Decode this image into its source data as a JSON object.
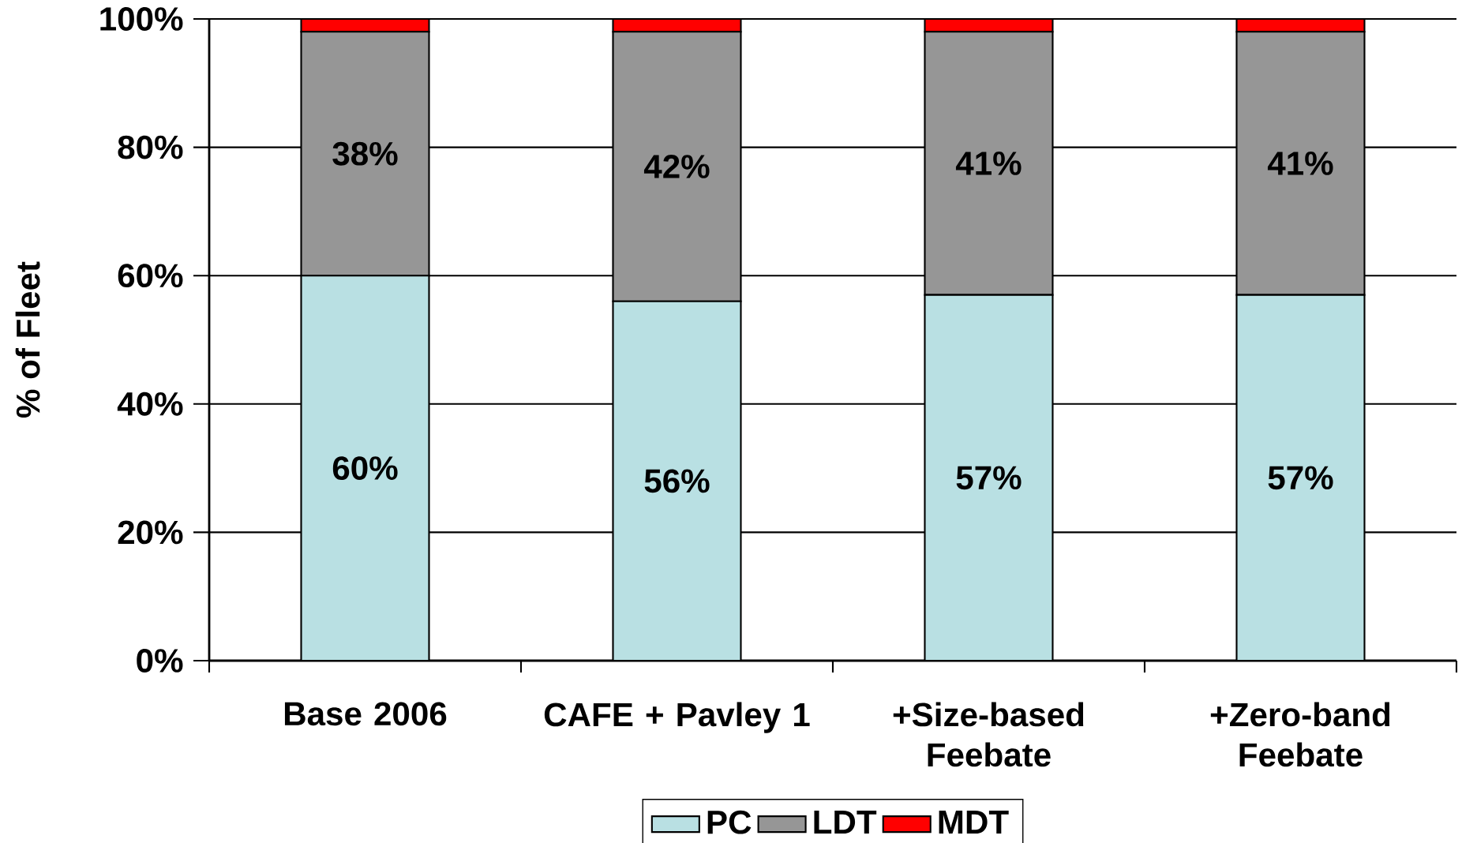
{
  "chart_data": {
    "type": "bar",
    "stacked": true,
    "ylabel": "% of Fleet",
    "categories": [
      "Base 2006",
      "CAFE + Pavley 1",
      "+Size-based Feebate",
      "+Zero-band Feebate"
    ],
    "series": [
      {
        "name": "PC",
        "color": "#b9e0e3",
        "values": [
          60,
          56,
          57,
          57
        ],
        "value_labels": [
          "60%",
          "56%",
          "57%",
          "57%"
        ]
      },
      {
        "name": "LDT",
        "color": "#969696",
        "values": [
          38,
          42,
          41,
          41
        ],
        "value_labels": [
          "38%",
          "42%",
          "41%",
          "41%"
        ]
      },
      {
        "name": "MDT",
        "color": "#ff0000",
        "values": [
          2,
          2,
          2,
          2
        ]
      }
    ],
    "ylim": [
      0,
      100
    ],
    "yticks": [
      {
        "value": 0,
        "label": "0%"
      },
      {
        "value": 20,
        "label": "20%"
      },
      {
        "value": 40,
        "label": "40%"
      },
      {
        "value": 60,
        "label": "60%"
      },
      {
        "value": 80,
        "label": "80%"
      },
      {
        "value": 100,
        "label": "100%"
      }
    ],
    "grid": "y",
    "legend": "bottom"
  }
}
